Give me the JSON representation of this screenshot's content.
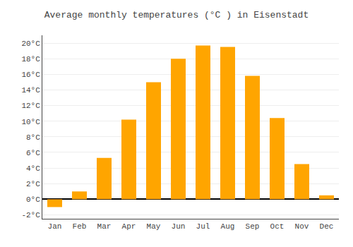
{
  "chart_data": {
    "type": "bar",
    "title": "Average monthly temperatures (°C ) in Eisenstadt",
    "categories": [
      "Jan",
      "Feb",
      "Mar",
      "Apr",
      "May",
      "Jun",
      "Jul",
      "Aug",
      "Sep",
      "Oct",
      "Nov",
      "Dec"
    ],
    "values": [
      -1.0,
      1.0,
      5.3,
      10.2,
      15.0,
      18.0,
      19.7,
      19.5,
      15.8,
      10.4,
      4.5,
      0.5
    ],
    "color": "#FFA500",
    "ylim": [
      -2.5,
      21
    ],
    "yticks": [
      {
        "value": -2,
        "label": "-2°C"
      },
      {
        "value": 0,
        "label": "0°C"
      },
      {
        "value": 2,
        "label": "2°C"
      },
      {
        "value": 4,
        "label": "4°C"
      },
      {
        "value": 6,
        "label": "6°C"
      },
      {
        "value": 8,
        "label": "8°C"
      },
      {
        "value": 10,
        "label": "10°C"
      },
      {
        "value": 12,
        "label": "12°C"
      },
      {
        "value": 14,
        "label": "14°C"
      },
      {
        "value": 16,
        "label": "16°C"
      },
      {
        "value": 18,
        "label": "18°C"
      },
      {
        "value": 20,
        "label": "20°C"
      }
    ],
    "grid": true
  }
}
